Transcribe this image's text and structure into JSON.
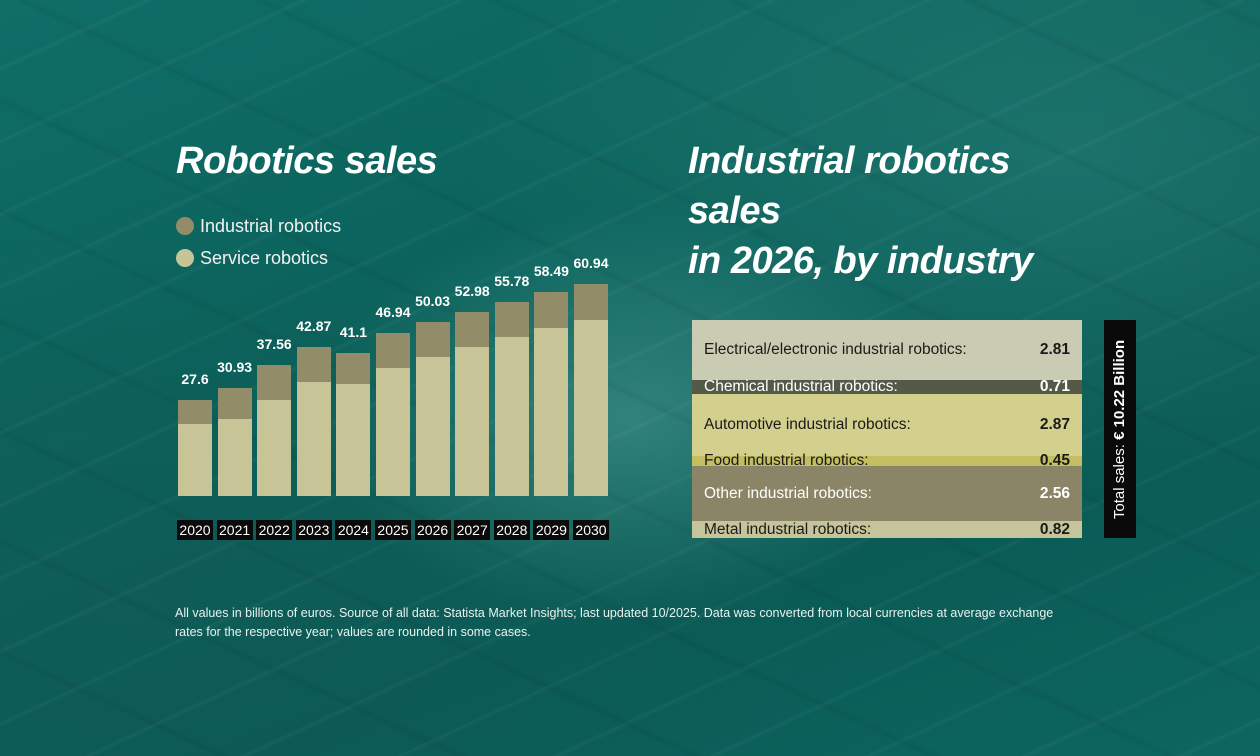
{
  "left_panel": {
    "title": "Robotics sales",
    "legend": [
      {
        "label": "Industrial robotics",
        "color": "#938c69"
      },
      {
        "label": "Service robotics",
        "color": "#c7c497"
      }
    ]
  },
  "right_panel": {
    "title_line1": "Industrial robotics sales",
    "title_line2": "in 2026, by industry",
    "total_label": "Total sales: ",
    "total_value": "€ 10.22 Billion",
    "rows": [
      {
        "label": "Electrical/electronic industrial robotics:",
        "value": "2.81",
        "bg": "#c9cbb2",
        "fg": "#1a1a1a",
        "height": 60
      },
      {
        "label": "Chemical industrial robotics:",
        "value": "0.71",
        "bg": "#555a48",
        "fg": "#ffffff",
        "height": 14
      },
      {
        "label": "Automotive industrial robotics:",
        "value": "2.87",
        "bg": "#d3d08e",
        "fg": "#1a1a1a",
        "height": 62
      },
      {
        "label": "Food industrial robotics:",
        "value": "0.45",
        "bg": "#c3be62",
        "fg": "#1a1a1a",
        "height": 10
      },
      {
        "label": "Other industrial robotics:",
        "value": "2.56",
        "bg": "#8a8566",
        "fg": "#ffffff",
        "height": 55
      },
      {
        "label": "Metal industrial robotics:",
        "value": "0.82",
        "bg": "#c6c49a",
        "fg": "#1a1a1a",
        "height": 17
      }
    ]
  },
  "footnote": "All values in billions of euros. Source of all data: Statista Market Insights; last updated 10/2025. Data was converted from local currencies at average exchange rates for the respective year; values are rounded in some cases.",
  "chart_data": [
    {
      "type": "bar",
      "stacked": true,
      "title": "Robotics sales",
      "xlabel": "",
      "ylabel": "Billions of euros",
      "categories": [
        "2020",
        "2021",
        "2022",
        "2023",
        "2024",
        "2025",
        "2026",
        "2027",
        "2028",
        "2029",
        "2030"
      ],
      "totals": [
        27.6,
        30.93,
        37.56,
        42.87,
        41.1,
        46.94,
        50.03,
        52.98,
        55.78,
        58.49,
        60.94
      ],
      "total_labels": [
        "27.6",
        "30.93",
        "37.56",
        "42.87",
        "41.1",
        "46.94",
        "50.03",
        "52.98",
        "55.78",
        "58.49",
        "60.94"
      ],
      "series": [
        {
          "name": "Service robotics",
          "color": "#c7c497",
          "values": [
            20.7,
            22.0,
            27.5,
            32.8,
            32.2,
            36.8,
            39.81,
            42.7,
            45.7,
            48.2,
            50.6
          ]
        },
        {
          "name": "Industrial robotics",
          "color": "#938c69",
          "values": [
            6.9,
            8.9,
            10.1,
            10.1,
            8.9,
            10.1,
            10.22,
            10.3,
            10.1,
            10.3,
            10.3
          ]
        }
      ],
      "legend_position": "top-left",
      "grid": false
    },
    {
      "type": "table",
      "title": "Industrial robotics sales in 2026, by industry",
      "categories": [
        "Electrical/electronic industrial robotics",
        "Chemical industrial robotics",
        "Automotive industrial robotics",
        "Food industrial robotics",
        "Other industrial robotics",
        "Metal industrial robotics"
      ],
      "values": [
        2.81,
        0.71,
        2.87,
        0.45,
        2.56,
        0.82
      ],
      "total": 10.22,
      "total_label": "Total sales: € 10.22 Billion"
    }
  ]
}
